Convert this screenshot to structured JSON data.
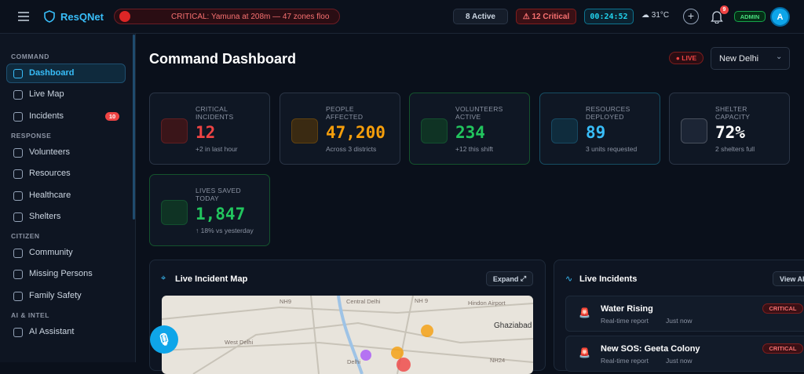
{
  "header": {
    "brand": "ResQNet",
    "ticker": "CRITICAL: Yamuna at 208m — 47 zones floo",
    "active": "8 Active",
    "critical": "12 Critical",
    "timer": "00:24:52",
    "weather": "31°C",
    "notifications": "9",
    "role": "ADMIN",
    "avatar": "A"
  },
  "sidebar": {
    "sections": [
      {
        "title": "COMMAND",
        "items": [
          {
            "label": "Dashboard"
          },
          {
            "label": "Live Map"
          },
          {
            "label": "Incidents",
            "badge": "10"
          }
        ]
      },
      {
        "title": "RESPONSE",
        "items": [
          {
            "label": "Volunteers"
          },
          {
            "label": "Resources"
          },
          {
            "label": "Healthcare"
          },
          {
            "label": "Shelters"
          }
        ]
      },
      {
        "title": "CITIZEN",
        "items": [
          {
            "label": "Community"
          },
          {
            "label": "Missing Persons"
          },
          {
            "label": "Family Safety"
          }
        ]
      },
      {
        "title": "AI & INTEL",
        "items": [
          {
            "label": "AI Assistant"
          }
        ]
      }
    ]
  },
  "main": {
    "title": "Command Dashboard",
    "live": "LIVE",
    "city": "New Delhi",
    "stats": [
      {
        "label": "CRITICAL INCIDENTS",
        "value": "12",
        "note": "+2 in last hour"
      },
      {
        "label": "PEOPLE AFFECTED",
        "value": "47,200",
        "note": "Across 3 districts"
      },
      {
        "label": "VOLUNTEERS ACTIVE",
        "value": "234",
        "note": "+12 this shift"
      },
      {
        "label": "RESOURCES DEPLOYED",
        "value": "89",
        "note": "3 units requested"
      },
      {
        "label": "SHELTER CAPACITY",
        "value": "72%",
        "note": "2 shelters full"
      },
      {
        "label": "LIVES SAVED TODAY",
        "value": "1,847",
        "note": "↑ 18% vs yesterday"
      }
    ],
    "map_panel": {
      "title": "Live Incident Map",
      "button": "Expand",
      "labels": [
        "NH9",
        "Central Delhi",
        "NH 9",
        "Hindon Airport",
        "Ghaziabad",
        "West Delhi",
        "Delhi",
        "NH24"
      ]
    },
    "incidents_panel": {
      "title": "Live Incidents",
      "button": "View Al",
      "items": [
        {
          "title": "Water Rising",
          "source": "Real-time report",
          "time": "Just now",
          "severity": "CRITICAL"
        },
        {
          "title": "New SOS: Geeta Colony",
          "source": "Real-time report",
          "time": "Just now",
          "severity": "CRITICAL"
        }
      ]
    }
  }
}
